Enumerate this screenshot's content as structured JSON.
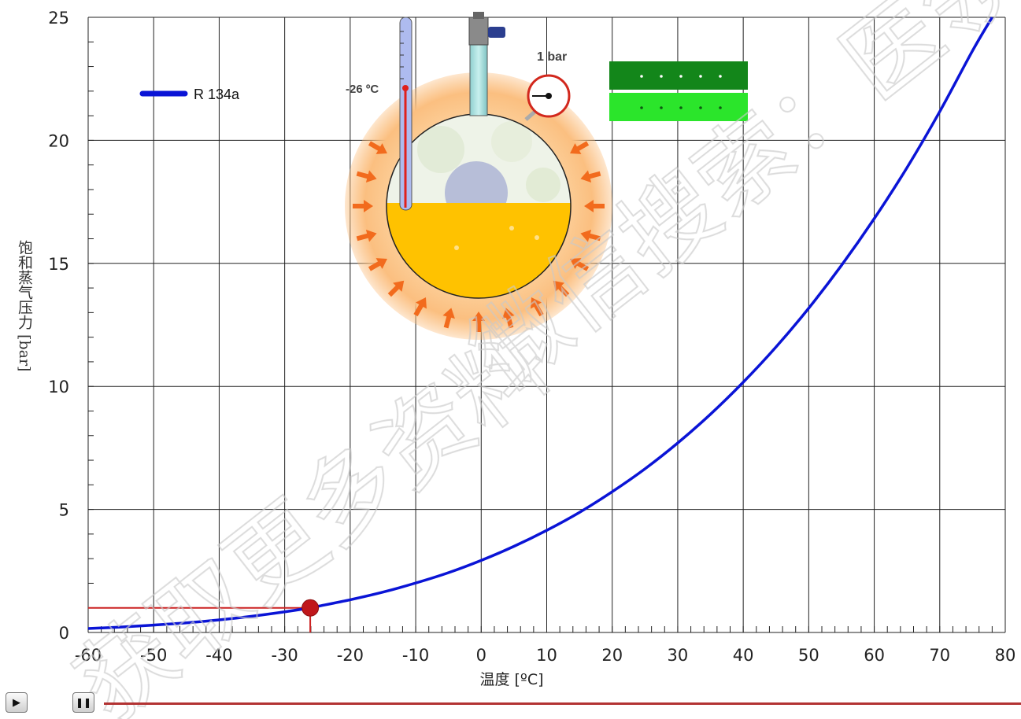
{
  "chart_data": {
    "type": "line",
    "x": [
      -60,
      -55,
      -50,
      -45,
      -40,
      -35,
      -30,
      -26.1,
      -25,
      -20,
      -15,
      -10,
      -5,
      0,
      5,
      10,
      15,
      20,
      25,
      30,
      35,
      40,
      45,
      50,
      55,
      60,
      65,
      70,
      75,
      78
    ],
    "series": [
      {
        "name": "R 134a",
        "values": [
          0.16,
          0.22,
          0.3,
          0.39,
          0.51,
          0.66,
          0.84,
          1.0,
          1.06,
          1.33,
          1.64,
          2.01,
          2.43,
          2.93,
          3.5,
          4.15,
          4.88,
          5.72,
          6.65,
          7.7,
          8.87,
          10.17,
          11.6,
          13.18,
          14.92,
          16.82,
          18.89,
          21.17,
          23.64,
          25.0
        ],
        "color": "#0a14d6"
      }
    ],
    "xlim": [
      -60,
      80
    ],
    "ylim": [
      0,
      25
    ],
    "x_ticks": [
      "-60",
      "-50",
      "-40",
      "-30",
      "-20",
      "-10",
      "0",
      "10",
      "20",
      "30",
      "40",
      "50",
      "60",
      "70",
      "80"
    ],
    "y_ticks": [
      "0",
      "5",
      "10",
      "15",
      "20",
      "25"
    ],
    "xlabel": "温度 [ºC]",
    "ylabel": "饱和蒸气压力 [bar]",
    "grid": true,
    "legend": "top-left",
    "marker": {
      "x": -26.1,
      "y": 1.0,
      "color": "#c0171b"
    },
    "guide_color": "#cc2222"
  },
  "flask": {
    "temperature_label": "-26 ºC",
    "pressure_label": "1 bar",
    "liquid_color": "#ffc200",
    "halo_color": "#fbb973",
    "arrow_color": "#f26b1d"
  },
  "indicators": {
    "top_color": "#13861a",
    "bottom_color": "#2be52b"
  },
  "controls": {
    "play_label": "▶",
    "pause_label": "❚❚"
  },
  "watermark": [
    "获取更多资料",
    "微信搜索：医领"
  ]
}
